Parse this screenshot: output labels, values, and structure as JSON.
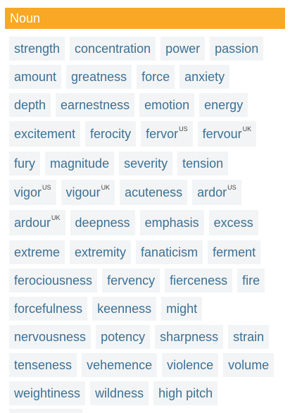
{
  "section": {
    "title": "Noun"
  },
  "rows": [
    [
      {
        "w": "strength"
      },
      {
        "w": "concentration"
      },
      {
        "w": "power"
      },
      {
        "w": "passion"
      }
    ],
    [
      {
        "w": "amount"
      },
      {
        "w": "greatness"
      },
      {
        "w": "force"
      },
      {
        "w": "anxiety"
      }
    ],
    [
      {
        "w": "depth"
      },
      {
        "w": "earnestness"
      },
      {
        "w": "emotion"
      },
      {
        "w": "energy"
      }
    ],
    [
      {
        "w": "excitement"
      },
      {
        "w": "ferocity"
      },
      {
        "w": "fervor",
        "tag": "US"
      },
      {
        "w": "fervour",
        "tag": "UK"
      }
    ],
    [
      {
        "w": "fury"
      },
      {
        "w": "magnitude"
      },
      {
        "w": "severity"
      },
      {
        "w": "tension"
      }
    ],
    [
      {
        "w": "vigor",
        "tag": "US"
      },
      {
        "w": "vigour",
        "tag": "UK"
      },
      {
        "w": "acuteness"
      },
      {
        "w": "ardor",
        "tag": "US"
      }
    ],
    [
      {
        "w": "ardour",
        "tag": "UK"
      },
      {
        "w": "deepness"
      },
      {
        "w": "emphasis"
      },
      {
        "w": "excess"
      }
    ],
    [
      {
        "w": "extreme"
      },
      {
        "w": "extremity"
      },
      {
        "w": "fanaticism"
      },
      {
        "w": "ferment"
      }
    ],
    [
      {
        "w": "ferociousness"
      },
      {
        "w": "fervency"
      },
      {
        "w": "fierceness"
      },
      {
        "w": "fire"
      }
    ],
    [
      {
        "w": "forcefulness"
      },
      {
        "w": "keenness"
      },
      {
        "w": "might"
      }
    ],
    [
      {
        "w": "nervousness"
      },
      {
        "w": "potency"
      },
      {
        "w": "sharpness"
      },
      {
        "w": "strain"
      }
    ],
    [
      {
        "w": "tenseness"
      },
      {
        "w": "vehemence"
      },
      {
        "w": "violence"
      },
      {
        "w": "volume"
      }
    ],
    [
      {
        "w": "weightiness"
      },
      {
        "w": "wildness"
      },
      {
        "w": "high pitch"
      }
    ]
  ],
  "colors": {
    "header_bg": "#f8a825",
    "chip_bg": "#f3f4f5",
    "chip_text": "#3b7197"
  }
}
